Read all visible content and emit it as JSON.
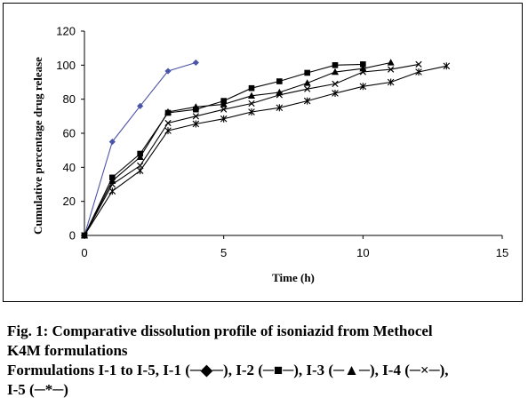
{
  "chart_data": {
    "type": "line",
    "title": "",
    "xlabel": "Time (h)",
    "ylabel": "Cumulative percentage drug release",
    "xlim": [
      0,
      15
    ],
    "ylim": [
      0,
      120
    ],
    "xticks": [
      0,
      5,
      10,
      15
    ],
    "yticks": [
      0,
      20,
      40,
      60,
      80,
      100,
      120
    ],
    "grid": false,
    "legend": "none",
    "series": [
      {
        "marker": "diamond",
        "color": "#4a55a8",
        "x": [
          0,
          1,
          2,
          3,
          4
        ],
        "y": [
          0,
          55,
          76,
          96.5,
          101.5
        ]
      },
      {
        "marker": "square",
        "color": "#000000",
        "x": [
          0,
          1,
          2,
          3,
          4,
          5,
          6,
          7,
          8,
          9,
          10
        ],
        "y": [
          0,
          34,
          48,
          72,
          74,
          79,
          86.5,
          90.5,
          95.5,
          100,
          100.5
        ]
      },
      {
        "marker": "triangle",
        "color": "#000000",
        "x": [
          0,
          1,
          2,
          3,
          4,
          5,
          6,
          7,
          8,
          9,
          10,
          11
        ],
        "y": [
          0,
          32,
          46,
          72.5,
          75.5,
          77,
          82,
          84,
          89.5,
          96,
          98,
          101.5
        ]
      },
      {
        "marker": "x",
        "color": "#000000",
        "x": [
          0,
          1,
          2,
          3,
          4,
          5,
          6,
          7,
          8,
          9,
          10,
          11,
          12
        ],
        "y": [
          0,
          30,
          41,
          66,
          70,
          74,
          77.5,
          82.5,
          86,
          89,
          96,
          97.5,
          100.5
        ]
      },
      {
        "marker": "star",
        "color": "#000000",
        "x": [
          0,
          1,
          2,
          3,
          4,
          5,
          6,
          7,
          8,
          9,
          10,
          11,
          12,
          13
        ],
        "y": [
          0,
          26,
          38,
          61.5,
          65.5,
          68.5,
          72.5,
          75,
          79,
          83.5,
          87.5,
          90,
          96,
          99.5
        ]
      }
    ]
  },
  "caption": {
    "line1": "Fig. 1: Comparative dissolution profile of isoniazid from Methocel",
    "line2": "K4M formulations",
    "line3": "Formulations I-1 to I-5, I-1 (─◆─), I-2 (─■─), I-3 (─▲─), I-4 (─×─),",
    "line4": "I-5 (─*─)"
  }
}
